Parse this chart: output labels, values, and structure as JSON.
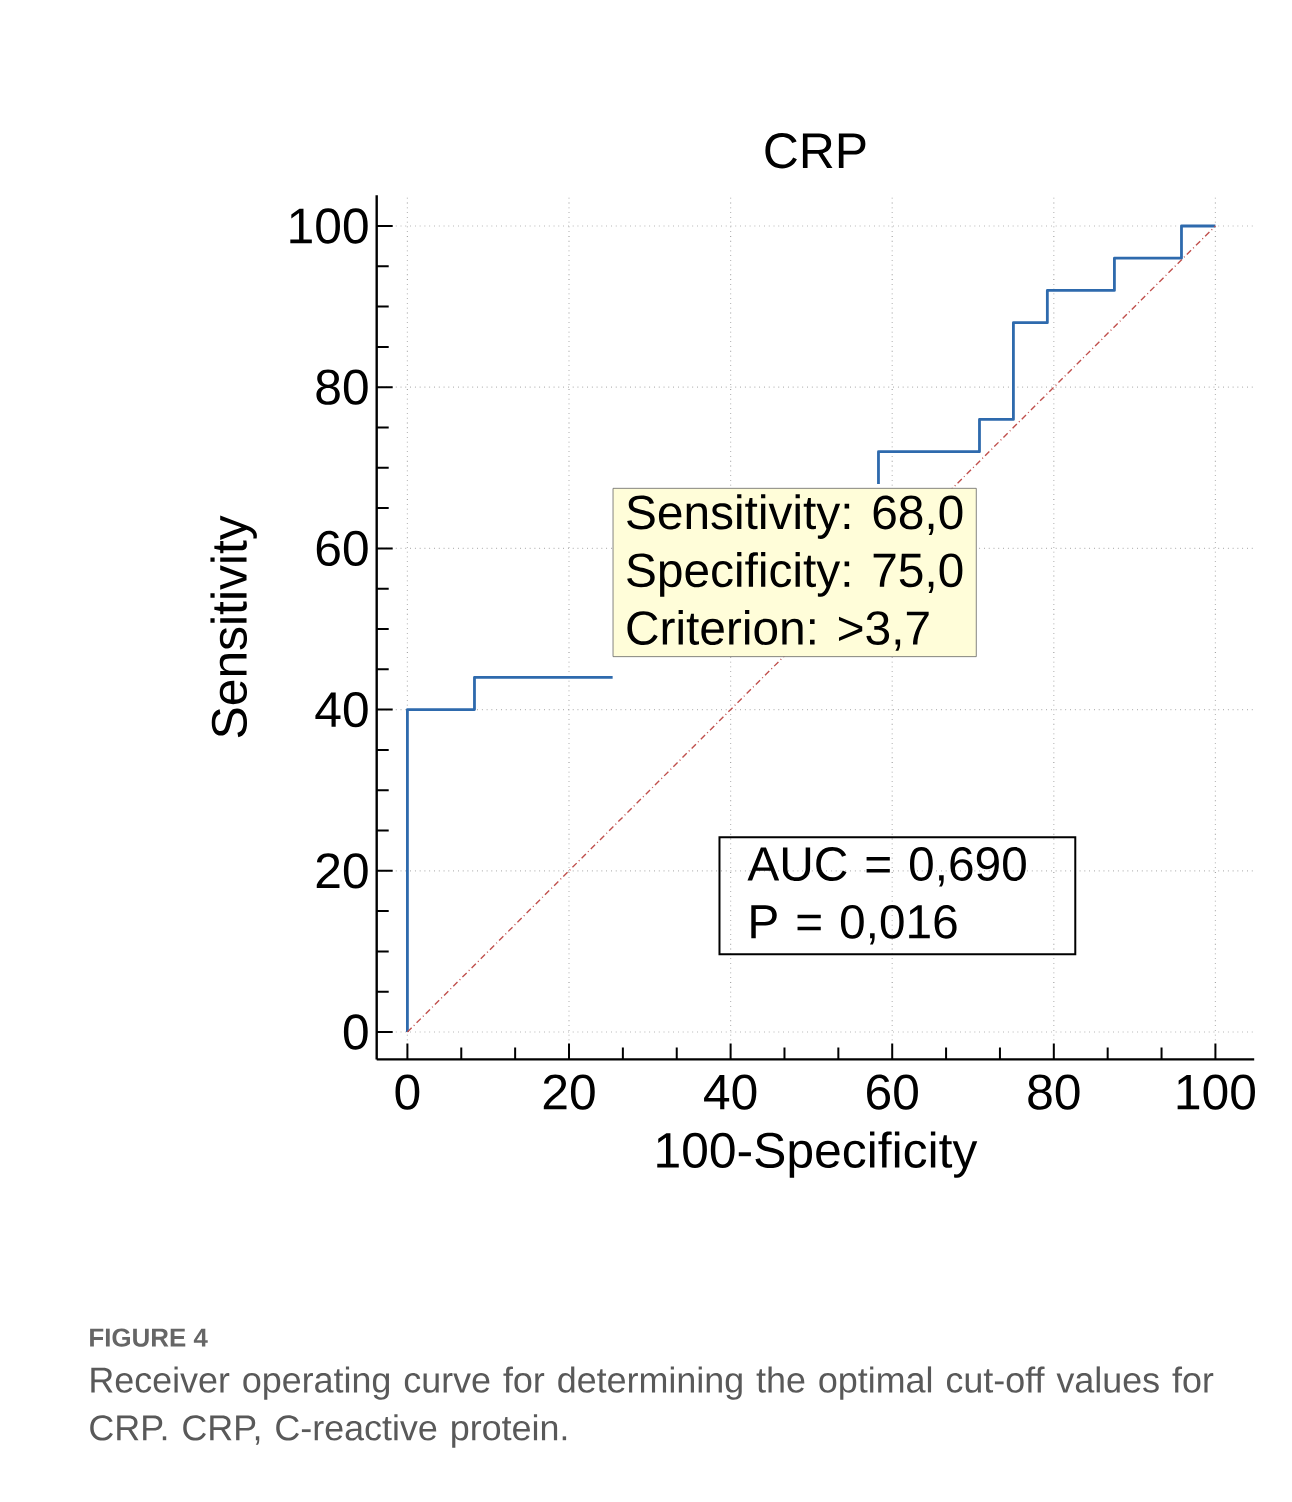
{
  "chart_data": {
    "type": "line",
    "title": "CRP",
    "xlabel": "100-Specificity",
    "ylabel": "Sensitivity",
    "xlim": [
      -3.8,
      104.8
    ],
    "ylim": [
      -3.4,
      103.8
    ],
    "xticks": [
      0,
      20,
      40,
      60,
      80,
      100
    ],
    "yticks": [
      0,
      20,
      40,
      60,
      80,
      100
    ],
    "grid": true,
    "series": [
      {
        "type": "step",
        "color": "#2e6aad",
        "line_style": "solid",
        "x": [
          0,
          0,
          8.3,
          8.3,
          25.4,
          null,
          58.3,
          58.3,
          70.8,
          70.8,
          75,
          75,
          79.2,
          79.2,
          87.5,
          87.5,
          95.8,
          95.8,
          100
        ],
        "values": [
          0,
          40,
          40,
          44,
          44,
          null,
          68,
          72,
          72,
          76,
          76,
          88,
          88,
          92,
          92,
          96,
          96,
          100,
          100
        ]
      },
      {
        "type": "line",
        "color": "#c0504d",
        "line_style": "dashed",
        "x": [
          0,
          100
        ],
        "values": [
          0,
          100
        ]
      }
    ],
    "annotations": [
      "Sensitivity: 68,0",
      "Specificity: 75,0",
      "Criterion: >3,7",
      "AUC = 0,690",
      "P = 0,016",
      "FIGURE 4",
      "Receiver operating curve for determining the optimal cut-off values for CRP. CRP, C-reactive protein."
    ]
  }
}
